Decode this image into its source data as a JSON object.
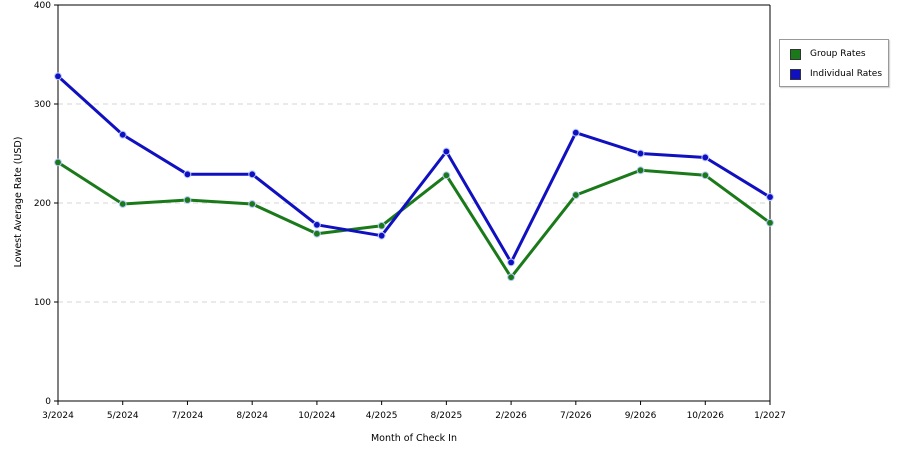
{
  "chart_data": {
    "type": "line",
    "xlabel": "Month of Check In",
    "ylabel": "Lowest Average Rate (USD)",
    "ylim": [
      0,
      400
    ],
    "yticks": [
      0,
      100,
      200,
      300,
      400
    ],
    "grid": "horizontal dashed",
    "legend_position": "right",
    "categories": [
      "3/2024",
      "5/2024",
      "7/2024",
      "8/2024",
      "10/2024",
      "4/2025",
      "8/2025",
      "2/2026",
      "7/2026",
      "9/2026",
      "10/2026",
      "1/2027"
    ],
    "series": [
      {
        "name": "Group Rates",
        "color": "#1a7a1a",
        "values": [
          241,
          199,
          203,
          199,
          169,
          177,
          228,
          125,
          208,
          233,
          228,
          180
        ]
      },
      {
        "name": "Individual Rates",
        "color": "#1010c0",
        "values": [
          328,
          269,
          229,
          229,
          178,
          167,
          252,
          140,
          271,
          250,
          246,
          206
        ]
      }
    ]
  }
}
